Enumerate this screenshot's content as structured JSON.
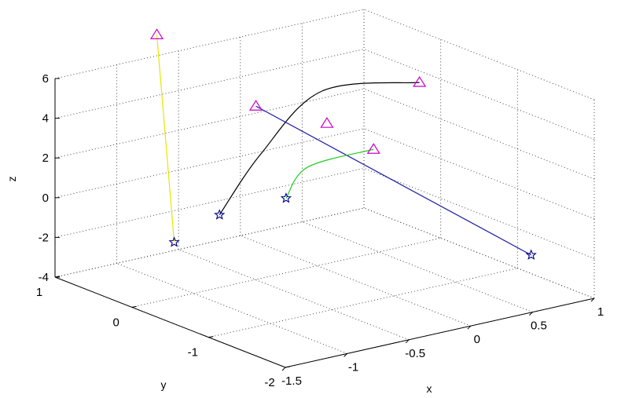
{
  "chart_data": {
    "type": "line",
    "projection": "3d",
    "grid": true,
    "xlabel": "x",
    "ylabel": "y",
    "zlabel": "z",
    "xlim": [
      -1.5,
      1
    ],
    "ylim": [
      -2,
      1
    ],
    "zlim": [
      -4,
      6
    ],
    "x_ticks": [
      "-1.5",
      "-1",
      "-0.5",
      "0",
      "0.5",
      "1"
    ],
    "y_ticks": [
      "-2",
      "-1",
      "0",
      "1"
    ],
    "z_ticks": [
      "-4",
      "-2",
      "0",
      "2",
      "4",
      "6"
    ],
    "series": [
      {
        "color": "#000000",
        "start_marker": "blue-star",
        "end_marker": "magenta-triangle",
        "points": [
          [
            -0.2,
            0.95,
            -2.6
          ],
          [
            -0.02,
            0.7,
            0.6
          ],
          [
            0.1,
            0.1,
            4.5
          ],
          [
            0.3,
            -0.85,
            6.1
          ]
        ]
      },
      {
        "color": "#1a1aa6",
        "start_marker": "blue-star",
        "end_marker": "magenta-triangle",
        "points": [
          [
            0.8,
            -1.5,
            -2.3
          ],
          [
            -0.62,
            -0.2,
            5.2
          ]
        ]
      },
      {
        "color": "#22cc22",
        "start_marker": "blue-star",
        "end_marker": "magenta-triangle",
        "points": [
          [
            -0.5,
            -0.4,
            0.7
          ],
          [
            -0.45,
            -0.6,
            2.5
          ],
          [
            -0.32,
            -1.25,
            4.2
          ]
        ]
      },
      {
        "color": "#e6e600",
        "start_marker": "blue-star",
        "end_marker": "magenta-triangle",
        "points": [
          [
            -1.25,
            -0.15,
            -0.85
          ],
          [
            -1.08,
            0.35,
            8.6
          ]
        ]
      },
      {
        "color": "#cc00cc",
        "markers_only": true,
        "marker": "magenta-triangle",
        "points": [
          [
            -0.48,
            -0.9,
            5.2
          ]
        ]
      }
    ]
  }
}
